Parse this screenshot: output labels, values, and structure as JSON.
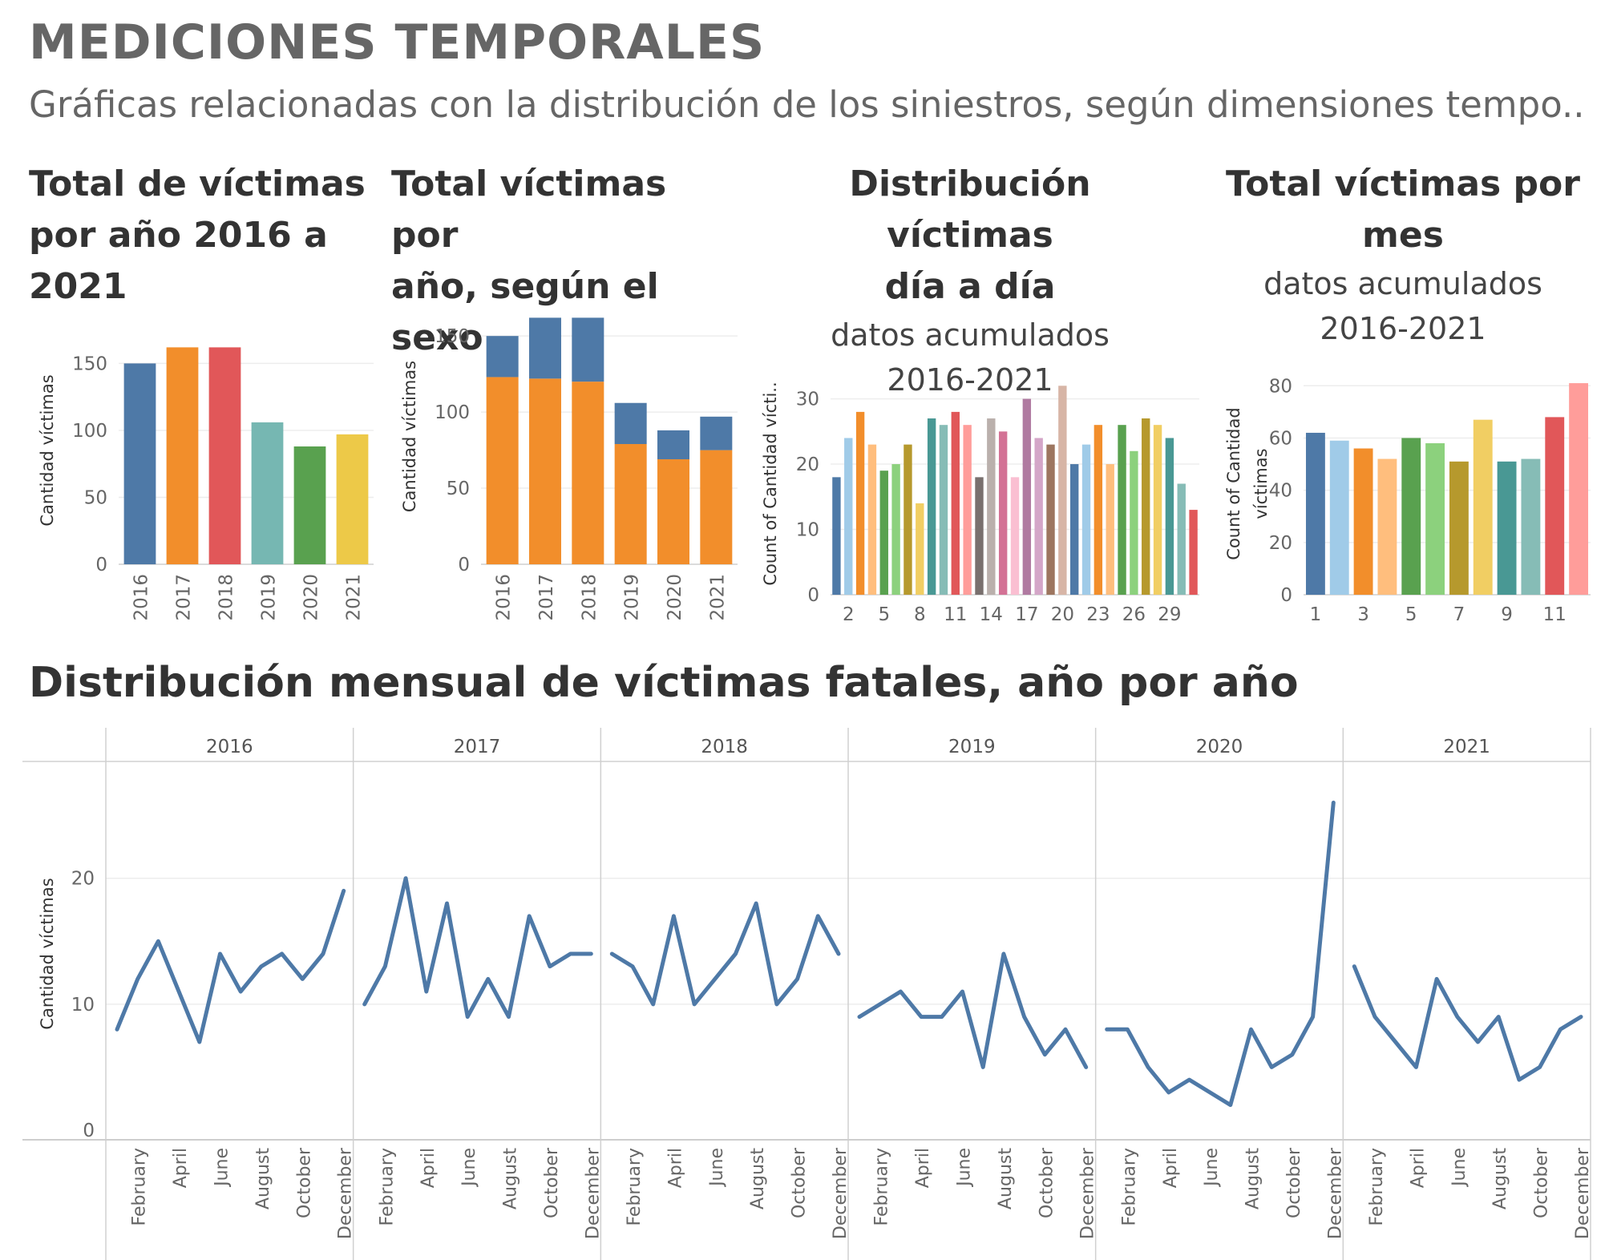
{
  "header": {
    "title": "MEDICIONES TEMPORALES",
    "subtitle": "Gráficas relacionadas con la distribución de los siniestros, según dimensiones tempo.."
  },
  "palette": {
    "blue": "#4e79a7",
    "orange": "#f28e2b",
    "red": "#e15759",
    "teal": "#76b7b2",
    "green": "#59a14f",
    "yellow": "#edc948",
    "gridline": "#ededed",
    "divider": "#d0d0d0"
  },
  "chart_data": [
    {
      "type": "bar",
      "title_lines": [
        "Total de víctimas",
        "por año 2016 a",
        "2021"
      ],
      "ylabel": "Cantidad víctimas",
      "categories": [
        "2016",
        "2017",
        "2018",
        "2019",
        "2020",
        "2021"
      ],
      "values": [
        150,
        162,
        162,
        106,
        88,
        97
      ],
      "colors": [
        "#4e79a7",
        "#f28e2b",
        "#e15759",
        "#76b7b2",
        "#59a14f",
        "#edc948"
      ],
      "yticks": [
        0,
        50,
        100,
        150
      ],
      "ylim": [
        0,
        170
      ]
    },
    {
      "type": "bar",
      "stacked": true,
      "title_lines": [
        "Total víctimas por",
        "año, según el sexo"
      ],
      "ylabel": "Cantidad víctimas",
      "categories": [
        "2016",
        "2017",
        "2018",
        "2019",
        "2020",
        "2021"
      ],
      "series": [
        {
          "values": [
            123,
            122,
            120,
            79,
            69,
            75
          ],
          "color": "#f28e2b"
        },
        {
          "values": [
            27,
            40,
            42,
            27,
            19,
            22
          ],
          "color": "#4e79a7"
        }
      ],
      "yticks": [
        0,
        50,
        100,
        150
      ],
      "ylim": [
        0,
        168
      ]
    },
    {
      "type": "bar",
      "title_lines": [
        "Distribución víctimas",
        "día a día"
      ],
      "subtitle_lines": [
        "datos acumulados",
        "2016-2021"
      ],
      "ylabel": "Count of Cantidad vícti..",
      "categories": [
        1,
        2,
        3,
        4,
        5,
        6,
        7,
        8,
        9,
        10,
        11,
        12,
        13,
        14,
        15,
        16,
        17,
        18,
        19,
        20,
        21,
        22,
        23,
        24,
        25,
        26,
        27,
        28,
        29,
        30,
        31
      ],
      "xtick_labels": [
        "2",
        "5",
        "8",
        "11",
        "14",
        "17",
        "20",
        "23",
        "26",
        "29"
      ],
      "values": [
        18,
        24,
        28,
        23,
        19,
        20,
        23,
        14,
        27,
        26,
        28,
        26,
        18,
        27,
        25,
        18,
        30,
        24,
        23,
        32,
        20,
        23,
        26,
        20,
        26,
        22,
        27,
        26,
        24,
        17,
        13
      ],
      "colors": [
        "#4e79a7",
        "#a0cbe8",
        "#f28e2b",
        "#ffbe7d",
        "#59a14f",
        "#8cd17d",
        "#b6992d",
        "#f1ce63",
        "#499894",
        "#86bcb6",
        "#e15759",
        "#ff9d9a",
        "#79706e",
        "#bab0ac",
        "#d37295",
        "#fabfd2",
        "#b07aa1",
        "#d4a6c8",
        "#9d7660",
        "#d7b5a6",
        "#4e79a7",
        "#a0cbe8",
        "#f28e2b",
        "#ffbe7d",
        "#59a14f",
        "#8cd17d",
        "#b6992d",
        "#f1ce63",
        "#499894",
        "#86bcb6",
        "#e15759"
      ],
      "yticks": [
        0,
        10,
        20,
        30
      ],
      "ylim": [
        0,
        34
      ]
    },
    {
      "type": "bar",
      "title_lines": [
        "Total víctimas por",
        "mes"
      ],
      "subtitle_lines": [
        "datos acumulados",
        "2016-2021"
      ],
      "ylabel_lines": [
        "Count of Cantidad",
        "víctimas"
      ],
      "categories": [
        1,
        2,
        3,
        4,
        5,
        6,
        7,
        8,
        9,
        10,
        11,
        12
      ],
      "xtick_labels": [
        "1",
        "3",
        "5",
        "7",
        "9",
        "11"
      ],
      "values": [
        62,
        59,
        56,
        52,
        60,
        58,
        51,
        67,
        51,
        52,
        68,
        81
      ],
      "colors": [
        "#4e79a7",
        "#a0cbe8",
        "#f28e2b",
        "#ffbe7d",
        "#59a14f",
        "#8cd17d",
        "#b6992d",
        "#f1ce63",
        "#499894",
        "#86bcb6",
        "#e15759",
        "#ff9d9a"
      ],
      "yticks": [
        0,
        20,
        40,
        60,
        80
      ],
      "ylim": [
        0,
        85
      ]
    },
    {
      "type": "line",
      "title": "Distribución mensual de víctimas fatales, año por año",
      "ylabel": "Cantidad víctimas",
      "color": "#4e79a7",
      "months": [
        "January",
        "February",
        "March",
        "April",
        "May",
        "June",
        "July",
        "August",
        "September",
        "October",
        "November",
        "December"
      ],
      "month_tick_labels": [
        "February",
        "April",
        "June",
        "August",
        "October",
        "December"
      ],
      "yticks": [
        0,
        10,
        20
      ],
      "ylim": [
        0,
        28
      ],
      "panels": [
        {
          "year": "2016",
          "values": [
            8,
            12,
            15,
            11,
            7,
            14,
            11,
            13,
            14,
            12,
            14,
            19
          ]
        },
        {
          "year": "2017",
          "values": [
            10,
            13,
            20,
            11,
            18,
            9,
            12,
            9,
            17,
            13,
            14,
            14
          ]
        },
        {
          "year": "2018",
          "values": [
            14,
            13,
            10,
            17,
            10,
            12,
            14,
            18,
            10,
            12,
            17,
            14
          ]
        },
        {
          "year": "2019",
          "values": [
            9,
            10,
            11,
            9,
            9,
            11,
            5,
            14,
            9,
            6,
            8,
            5
          ]
        },
        {
          "year": "2020",
          "values": [
            8,
            8,
            5,
            3,
            4,
            3,
            2,
            8,
            5,
            6,
            9,
            26
          ]
        },
        {
          "year": "2021",
          "values": [
            13,
            9,
            7,
            5,
            12,
            9,
            7,
            9,
            4,
            5,
            8,
            9
          ]
        }
      ]
    }
  ]
}
